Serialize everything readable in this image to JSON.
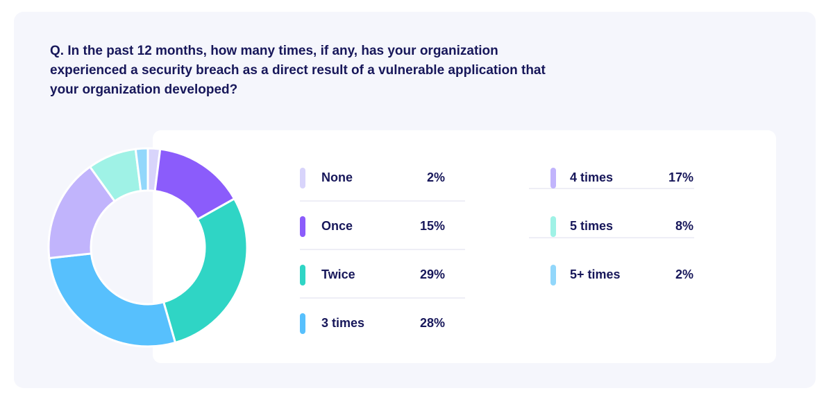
{
  "chart_data": {
    "type": "pie",
    "donut": true,
    "title": "Q.  In the past 12 months, how many times, if any, has your organization experienced a security breach as a direct result of a vulnerable application that your organization developed?",
    "categories": [
      "None",
      "Once",
      "Twice",
      "3 times",
      "4 times",
      "5 times",
      "5+ times"
    ],
    "values": [
      2,
      15,
      29,
      28,
      17,
      8,
      2
    ],
    "value_labels": [
      "2%",
      "15%",
      "29%",
      "28%",
      "17%",
      "8%",
      "2%"
    ],
    "colors": [
      "#d8d4fb",
      "#8b5cfb",
      "#2fd5c5",
      "#57c0fd",
      "#c1b4fc",
      "#9ff2e6",
      "#92d7fb"
    ]
  }
}
